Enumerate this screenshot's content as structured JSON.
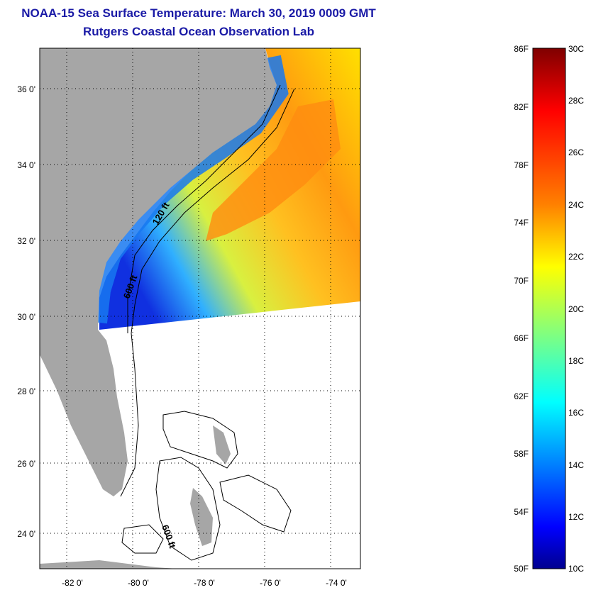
{
  "title": {
    "line1": "NOAA-15 Sea Surface Temperature:  March 30, 2019 0009 GMT",
    "line2": "Rutgers Coastal Ocean Observation Lab"
  },
  "map": {
    "lat_ticks": [
      "36 0'",
      "34 0'",
      "32 0'",
      "30 0'",
      "28 0'",
      "26 0'",
      "24 0'"
    ],
    "lon_ticks": [
      "-82 0'",
      "-80 0'",
      "-78 0'",
      "-76 0'",
      "-74 0'"
    ],
    "contour_labels": [
      "120 ft",
      "600 ft",
      "600 ft"
    ],
    "land_color": "#a6a6a6",
    "nodata_color": "#ffffff"
  },
  "colorbar": {
    "f_labels": [
      "86F",
      "82F",
      "78F",
      "74F",
      "70F",
      "66F",
      "62F",
      "58F",
      "54F",
      "50F"
    ],
    "c_labels": [
      "30C",
      "28C",
      "26C",
      "24C",
      "22C",
      "20C",
      "18C",
      "16C",
      "14C",
      "12C",
      "10C"
    ],
    "colors": [
      "#7f0000",
      "#ff0000",
      "#ff8000",
      "#ffff00",
      "#80ff80",
      "#00ffff",
      "#0080ff",
      "#0000ff",
      "#00008f"
    ]
  }
}
